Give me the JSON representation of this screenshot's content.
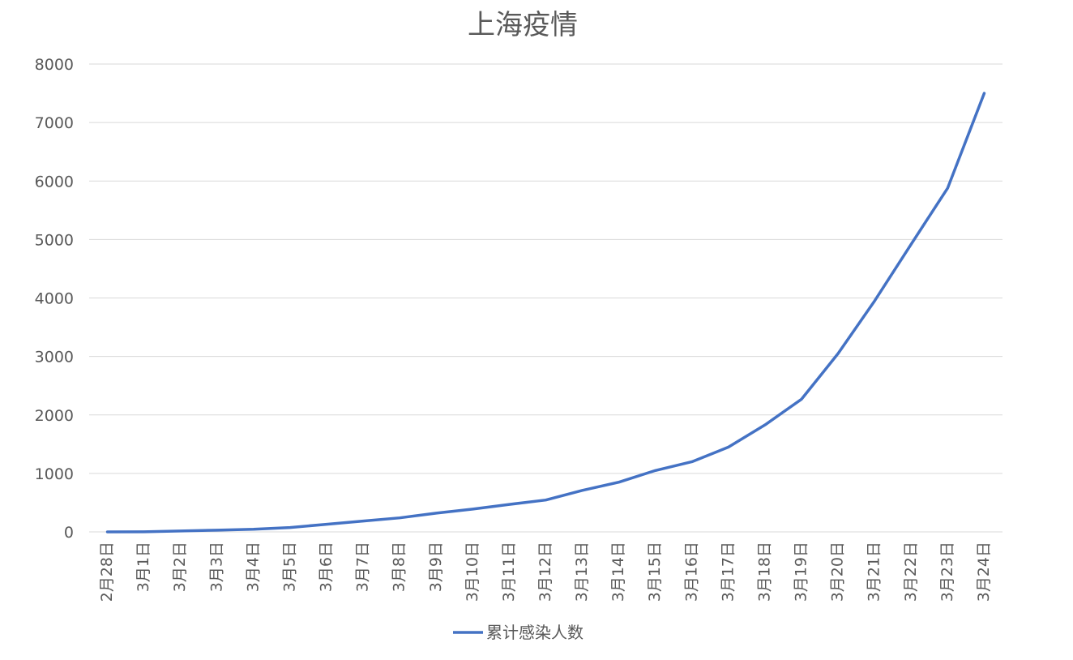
{
  "chart_data": {
    "type": "line",
    "title": "上海疫情",
    "xlabel": "",
    "ylabel": "",
    "ylim": [
      0,
      8000
    ],
    "yticks": [
      0,
      1000,
      2000,
      3000,
      4000,
      5000,
      6000,
      7000,
      8000
    ],
    "grid": true,
    "legend_position": "bottom",
    "categories": [
      "2月28日",
      "3月1日",
      "3月2日",
      "3月3日",
      "3月4日",
      "3月5日",
      "3月6日",
      "3月7日",
      "3月8日",
      "3月9日",
      "3月10日",
      "3月11日",
      "3月12日",
      "3月13日",
      "3月14日",
      "3月15日",
      "3月16日",
      "3月17日",
      "3月18日",
      "3月19日",
      "3月20日",
      "3月21日",
      "3月22日",
      "3月23日",
      "3月24日"
    ],
    "series": [
      {
        "name": "累计感染人数",
        "color": "#4472c4",
        "values": [
          0,
          2,
          15,
          30,
          45,
          75,
          130,
          185,
          240,
          320,
          390,
          470,
          545,
          710,
          850,
          1050,
          1200,
          1450,
          1830,
          2270,
          3050,
          3950,
          4920,
          5880,
          7500
        ]
      }
    ]
  }
}
